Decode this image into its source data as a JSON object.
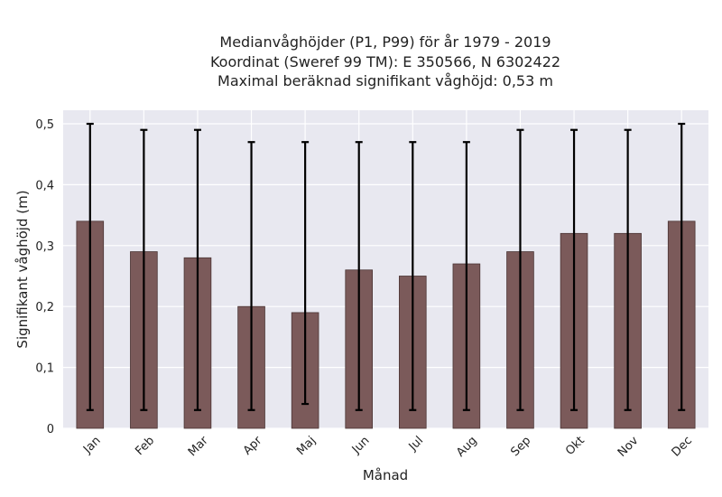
{
  "chart_data": {
    "type": "bar",
    "title_lines": [
      "Medianvåghöjder (P1, P99) för år 1979 - 2019",
      "Koordinat (Sweref 99 TM): E 350566, N 6302422",
      "Maximal beräknad signifikant våghöjd: 0,53 m"
    ],
    "xlabel": "Månad",
    "ylabel": "Signifikant våghöjd (m)",
    "categories": [
      "Jan",
      "Feb",
      "Mar",
      "Apr",
      "Maj",
      "Jun",
      "Jul",
      "Aug",
      "Sep",
      "Okt",
      "Nov",
      "Dec"
    ],
    "values": [
      0.34,
      0.29,
      0.28,
      0.2,
      0.19,
      0.26,
      0.25,
      0.27,
      0.29,
      0.32,
      0.32,
      0.34
    ],
    "error_low": [
      0.03,
      0.03,
      0.03,
      0.03,
      0.04,
      0.03,
      0.03,
      0.03,
      0.03,
      0.03,
      0.03,
      0.03
    ],
    "error_high": [
      0.5,
      0.49,
      0.49,
      0.47,
      0.47,
      0.47,
      0.47,
      0.47,
      0.49,
      0.49,
      0.49,
      0.5
    ],
    "yticks": [
      0,
      0.1,
      0.2,
      0.3,
      0.4,
      0.5
    ],
    "ytick_labels": [
      "0",
      "0,1",
      "0,2",
      "0,3",
      "0,4",
      "0,5"
    ],
    "ylim": [
      0,
      0.5
    ],
    "grid": true,
    "colors": {
      "bar": "#7b5a5a",
      "bar_edge": "#4a3434",
      "plot_bg": "#e8e8f0",
      "grid": "#ffffff",
      "error_bar": "#000000"
    }
  }
}
